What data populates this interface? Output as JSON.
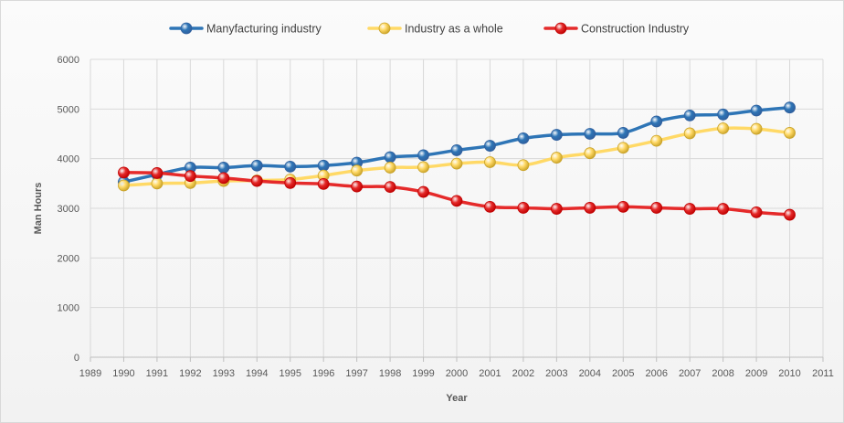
{
  "chart_data": {
    "type": "line",
    "title": "",
    "xlabel": "Year",
    "ylabel": "Man Hours",
    "xlim": [
      1989,
      2011
    ],
    "ylim": [
      0,
      6000
    ],
    "x_ticks": [
      1989,
      1990,
      1991,
      1992,
      1993,
      1994,
      1995,
      1996,
      1997,
      1998,
      1999,
      2000,
      2001,
      2002,
      2003,
      2004,
      2005,
      2006,
      2007,
      2008,
      2009,
      2010,
      2011
    ],
    "y_ticks": [
      0,
      1000,
      2000,
      3000,
      4000,
      5000,
      6000
    ],
    "grid": true,
    "legend_position": "top",
    "x": [
      1990,
      1991,
      1992,
      1993,
      1994,
      1995,
      1996,
      1997,
      1998,
      1999,
      2000,
      2001,
      2002,
      2003,
      2004,
      2005,
      2006,
      2007,
      2008,
      2009,
      2010
    ],
    "series": [
      {
        "name": "Manyfacturing industry",
        "color": "#2e75b6",
        "marker_color": "#2f5f9e",
        "values": [
          3530,
          3680,
          3820,
          3820,
          3860,
          3840,
          3860,
          3920,
          4030,
          4070,
          4170,
          4260,
          4410,
          4480,
          4500,
          4520,
          4750,
          4870,
          4890,
          4970,
          5030
        ]
      },
      {
        "name": "Industry as a whole",
        "color": "#ffd966",
        "marker_color": "#c9a227",
        "values": [
          3460,
          3500,
          3510,
          3550,
          3560,
          3580,
          3660,
          3760,
          3820,
          3830,
          3900,
          3930,
          3870,
          4020,
          4110,
          4220,
          4360,
          4510,
          4610,
          4600,
          4520
        ]
      },
      {
        "name": "Construction Industry",
        "color": "#e52a2a",
        "marker_color": "#c00000",
        "values": [
          3720,
          3710,
          3650,
          3610,
          3550,
          3510,
          3490,
          3440,
          3430,
          3330,
          3150,
          3030,
          3010,
          2990,
          3010,
          3030,
          3010,
          2990,
          2990,
          2920,
          2870
        ]
      }
    ]
  }
}
